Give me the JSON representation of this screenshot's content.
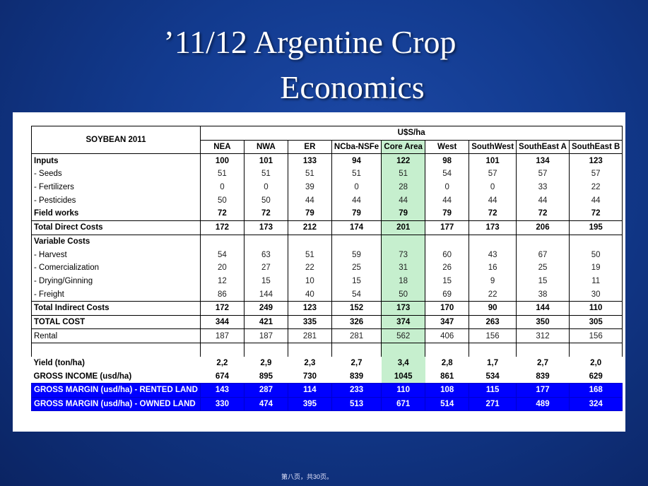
{
  "title": {
    "line1": "’11/12 Argentine Crop",
    "line2": "Economics"
  },
  "table": {
    "corner": "SOYBEAN 2011",
    "unit": "U$S/ha",
    "columns": [
      "NEA",
      "NWA",
      "ER",
      "NCba-NSFe",
      "Core Area",
      "West",
      "SouthWest",
      "SouthEast A",
      "SouthEast B"
    ],
    "rows": [
      {
        "label": "Inputs",
        "values": [
          "100",
          "101",
          "133",
          "94",
          "122",
          "98",
          "101",
          "134",
          "123"
        ]
      },
      {
        "label": "- Seeds",
        "values": [
          "51",
          "51",
          "51",
          "51",
          "51",
          "54",
          "57",
          "57",
          "57"
        ]
      },
      {
        "label": "- Fertilizers",
        "values": [
          "0",
          "0",
          "39",
          "0",
          "28",
          "0",
          "0",
          "33",
          "22"
        ]
      },
      {
        "label": "- Pesticides",
        "values": [
          "50",
          "50",
          "44",
          "44",
          "44",
          "44",
          "44",
          "44",
          "44"
        ]
      },
      {
        "label": "Field works",
        "values": [
          "72",
          "72",
          "79",
          "79",
          "79",
          "79",
          "72",
          "72",
          "72"
        ]
      },
      {
        "label": "Total Direct Costs",
        "values": [
          "172",
          "173",
          "212",
          "174",
          "201",
          "177",
          "173",
          "206",
          "195"
        ]
      },
      {
        "label": "Variable Costs",
        "values": [
          "",
          "",
          "",
          "",
          "",
          "",
          "",
          "",
          ""
        ]
      },
      {
        "label": "- Harvest",
        "values": [
          "54",
          "63",
          "51",
          "59",
          "73",
          "60",
          "43",
          "67",
          "50"
        ]
      },
      {
        "label": "- Comercialization",
        "values": [
          "20",
          "27",
          "22",
          "25",
          "31",
          "26",
          "16",
          "25",
          "19"
        ]
      },
      {
        "label": "- Drying/Ginning",
        "values": [
          "12",
          "15",
          "10",
          "15",
          "18",
          "15",
          "9",
          "15",
          "11"
        ]
      },
      {
        "label": "- Freight",
        "values": [
          "86",
          "144",
          "40",
          "54",
          "50",
          "69",
          "22",
          "38",
          "30"
        ]
      },
      {
        "label": "Total Indirect Costs",
        "values": [
          "172",
          "249",
          "123",
          "152",
          "173",
          "170",
          "90",
          "144",
          "110"
        ]
      },
      {
        "label": "TOTAL COST",
        "values": [
          "344",
          "421",
          "335",
          "326",
          "374",
          "347",
          "263",
          "350",
          "305"
        ]
      },
      {
        "label": "Rental",
        "values": [
          "187",
          "187",
          "281",
          "281",
          "562",
          "406",
          "156",
          "312",
          "156"
        ]
      },
      {
        "label": "",
        "values": [
          "",
          "",
          "",
          "",
          "",
          "",
          "",
          "",
          ""
        ]
      },
      {
        "label": "Yield (ton/ha)",
        "values": [
          "2,2",
          "2,9",
          "2,3",
          "2,7",
          "3,4",
          "2,8",
          "1,7",
          "2,7",
          "2,0"
        ]
      },
      {
        "label": "GROSS INCOME (usd/ha)",
        "values": [
          "674",
          "895",
          "730",
          "839",
          "1045",
          "861",
          "534",
          "839",
          "629"
        ]
      },
      {
        "label": "GROSS MARGIN (usd/ha) - RENTED LAND",
        "values": [
          "143",
          "287",
          "114",
          "233",
          "110",
          "108",
          "115",
          "177",
          "168"
        ]
      },
      {
        "label": "GROSS MARGIN (usd/ha) - OWNED LAND",
        "values": [
          "330",
          "474",
          "395",
          "513",
          "671",
          "514",
          "271",
          "489",
          "324"
        ]
      }
    ]
  },
  "footer": "第八页，共30页。",
  "colors": {
    "highlight": "#c6efce",
    "margin_rows": "#0000ff",
    "background": "#123a8e"
  }
}
